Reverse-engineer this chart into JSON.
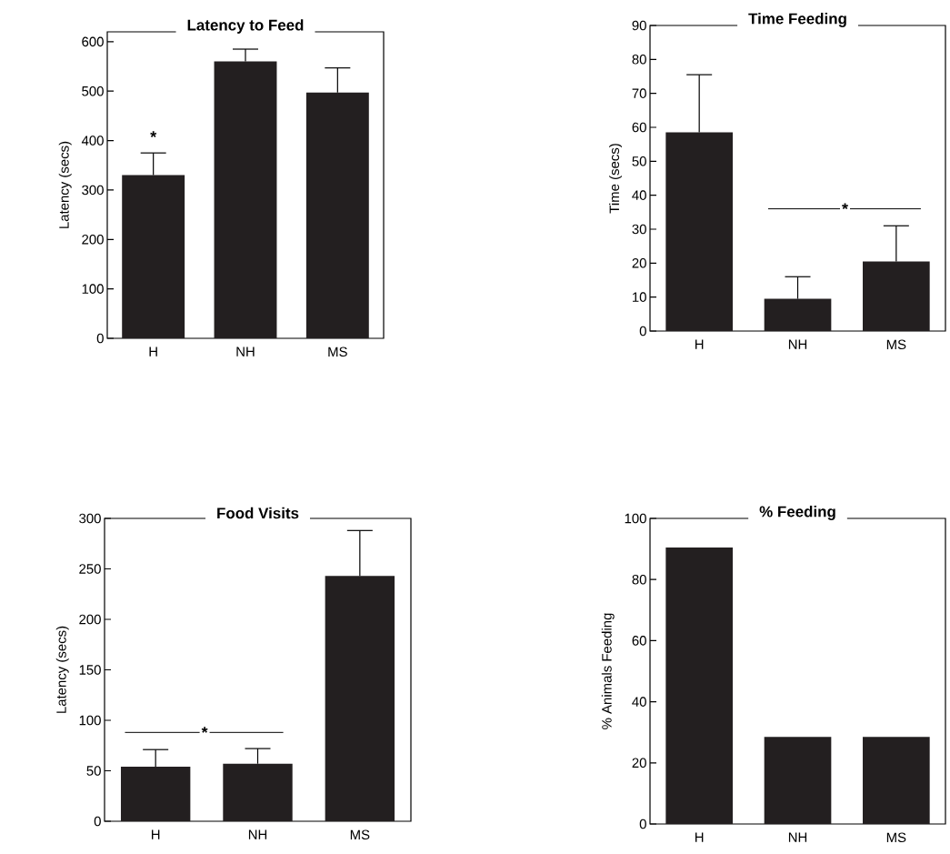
{
  "chart_data": [
    {
      "type": "bar",
      "title": "Latency to Feed",
      "ylabel": "Latency (secs)",
      "categories": [
        "H",
        "NH",
        "MS"
      ],
      "values": [
        330,
        560,
        497
      ],
      "errors": [
        45,
        25,
        50
      ],
      "color": "#231f20",
      "ylim": [
        0,
        620
      ],
      "yticks": [
        0,
        100,
        200,
        300,
        400,
        500,
        600
      ],
      "annotations": [
        "*"
      ]
    },
    {
      "type": "bar",
      "title": "Time Feeding",
      "ylabel": "Time (secs)",
      "categories": [
        "H",
        "NH",
        "MS"
      ],
      "values": [
        58.5,
        9.5,
        20.5
      ],
      "errors": [
        17,
        6.5,
        10.5
      ],
      "color": "#231f20",
      "ylim": [
        0,
        90
      ],
      "yticks": [
        0,
        10,
        20,
        30,
        40,
        50,
        60,
        70,
        80,
        90
      ],
      "annotations": [
        {
          "text": "*",
          "y": 36
        }
      ]
    },
    {
      "type": "bar",
      "title": "Food Visits",
      "ylabel": "Latency (secs)",
      "categories": [
        "H",
        "NH",
        "MS"
      ],
      "values": [
        54,
        57,
        243
      ],
      "errors": [
        17,
        15,
        45
      ],
      "color": "#231f20",
      "ylim": [
        0,
        300
      ],
      "yticks": [
        0,
        50,
        100,
        150,
        200,
        250,
        300
      ],
      "annotations": [
        {
          "text": "*",
          "y": 88
        }
      ]
    },
    {
      "type": "bar",
      "title": "% Feeding",
      "ylabel": "% Animals Feeding",
      "categories": [
        "H",
        "NH",
        "MS"
      ],
      "values": [
        90.5,
        28.5,
        28.5
      ],
      "color": "#231f20",
      "ylim": [
        0,
        100
      ],
      "yticks": [
        0,
        20,
        40,
        60,
        80,
        100
      ]
    }
  ]
}
